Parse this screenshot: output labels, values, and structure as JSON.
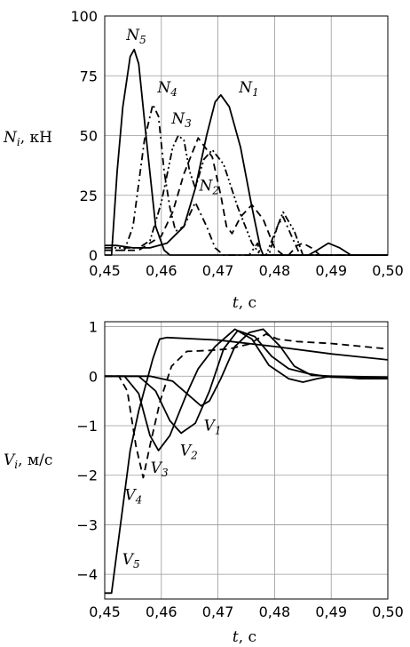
{
  "chart_data": [
    {
      "type": "line",
      "ylabel": {
        "sym": "N",
        "sub": "i",
        "unit": ", кН"
      },
      "xlabel": {
        "sym": "t",
        "unit": ", с"
      },
      "xlim": [
        0.45,
        0.5
      ],
      "ylim": [
        0,
        100
      ],
      "xticks": [
        "0,45",
        "0,46",
        "0,47",
        "0,48",
        "0,49",
        "0,50"
      ],
      "yticks": [
        "0",
        "25",
        "50",
        "75",
        "100"
      ],
      "grid": true,
      "series": [
        {
          "name": "N1",
          "dash": "solid",
          "points": [
            [
              0.45,
              4
            ],
            [
              0.452,
              4
            ],
            [
              0.455,
              3
            ],
            [
              0.458,
              3
            ],
            [
              0.461,
              5
            ],
            [
              0.464,
              12
            ],
            [
              0.466,
              28
            ],
            [
              0.468,
              50
            ],
            [
              0.4695,
              64
            ],
            [
              0.4705,
              67
            ],
            [
              0.472,
              62
            ],
            [
              0.474,
              45
            ],
            [
              0.476,
              20
            ],
            [
              0.4775,
              3
            ],
            [
              0.478,
              0
            ],
            [
              0.486,
              0
            ],
            [
              0.4875,
              2
            ],
            [
              0.4895,
              5
            ],
            [
              0.4915,
              3
            ],
            [
              0.4935,
              0
            ],
            [
              0.5,
              0
            ]
          ]
        },
        {
          "name": "N2",
          "dash": "dash",
          "points": [
            [
              0.45,
              2
            ],
            [
              0.456,
              2
            ],
            [
              0.46,
              8
            ],
            [
              0.462,
              18
            ],
            [
              0.464,
              34
            ],
            [
              0.4665,
              49
            ],
            [
              0.469,
              41
            ],
            [
              0.4705,
              25
            ],
            [
              0.4715,
              12
            ],
            [
              0.4725,
              9
            ],
            [
              0.474,
              16
            ],
            [
              0.476,
              21
            ],
            [
              0.478,
              15
            ],
            [
              0.48,
              3
            ],
            [
              0.4815,
              0
            ],
            [
              0.4825,
              0
            ],
            [
              0.484,
              4
            ],
            [
              0.485,
              5
            ],
            [
              0.4865,
              3
            ],
            [
              0.488,
              0
            ],
            [
              0.5,
              0
            ]
          ]
        },
        {
          "name": "N3",
          "dash": "dashdotdot",
          "points": [
            [
              0.45,
              3
            ],
            [
              0.456,
              3
            ],
            [
              0.458,
              6
            ],
            [
              0.46,
              22
            ],
            [
              0.462,
              45
            ],
            [
              0.463,
              50
            ],
            [
              0.464,
              48
            ],
            [
              0.465,
              35
            ],
            [
              0.466,
              28
            ],
            [
              0.4675,
              40
            ],
            [
              0.469,
              44
            ],
            [
              0.471,
              38
            ],
            [
              0.4735,
              20
            ],
            [
              0.476,
              5
            ],
            [
              0.4775,
              0
            ],
            [
              0.4785,
              0
            ],
            [
              0.4805,
              12
            ],
            [
              0.4815,
              18
            ],
            [
              0.4835,
              10
            ],
            [
              0.485,
              0
            ],
            [
              0.5,
              0
            ]
          ]
        },
        {
          "name": "N4",
          "dash": "dashdot",
          "points": [
            [
              0.45,
              2
            ],
            [
              0.4535,
              2
            ],
            [
              0.455,
              12
            ],
            [
              0.457,
              48
            ],
            [
              0.4585,
              63
            ],
            [
              0.4595,
              58
            ],
            [
              0.4605,
              35
            ],
            [
              0.4615,
              20
            ],
            [
              0.4625,
              10
            ],
            [
              0.464,
              12
            ],
            [
              0.466,
              22
            ],
            [
              0.468,
              12
            ],
            [
              0.4695,
              3
            ],
            [
              0.471,
              0
            ],
            [
              0.4755,
              0
            ],
            [
              0.477,
              5
            ],
            [
              0.4775,
              0
            ],
            [
              0.479,
              0
            ],
            [
              0.4805,
              12
            ],
            [
              0.4815,
              16
            ],
            [
              0.483,
              8
            ],
            [
              0.4845,
              0
            ],
            [
              0.5,
              0
            ]
          ]
        },
        {
          "name": "N5",
          "dash": "solid",
          "points": [
            [
              0.45,
              0
            ],
            [
              0.4512,
              0
            ],
            [
              0.4522,
              35
            ],
            [
              0.4532,
              62
            ],
            [
              0.4545,
              83
            ],
            [
              0.4552,
              86
            ],
            [
              0.456,
              80
            ],
            [
              0.4575,
              45
            ],
            [
              0.459,
              12
            ],
            [
              0.4605,
              2
            ],
            [
              0.4615,
              0
            ],
            [
              0.5,
              0
            ]
          ]
        }
      ],
      "labels": [
        {
          "series": "N5",
          "text": "N",
          "sub": "5",
          "at": [
            0.4538,
            90
          ]
        },
        {
          "series": "N4",
          "text": "N",
          "sub": "4",
          "at": [
            0.4593,
            68
          ]
        },
        {
          "series": "N3",
          "text": "N",
          "sub": "3",
          "at": [
            0.4618,
            55
          ]
        },
        {
          "series": "N1",
          "text": "N",
          "sub": "1",
          "at": [
            0.4737,
            68
          ]
        },
        {
          "series": "N2",
          "text": "N",
          "sub": "2",
          "at": [
            0.4667,
            27
          ]
        }
      ]
    },
    {
      "type": "line",
      "ylabel": {
        "sym": "V",
        "sub": "i",
        "unit": ", м/с"
      },
      "xlabel": {
        "sym": "t",
        "unit": ", с"
      },
      "xlim": [
        0.45,
        0.5
      ],
      "ylim": [
        -4.5,
        1.1
      ],
      "xticks": [
        "0,45",
        "0,46",
        "0,47",
        "0,48",
        "0,49",
        "0,50"
      ],
      "yticks": [
        "-4",
        "-3",
        "-2",
        "-1",
        "0",
        "1"
      ],
      "grid": true,
      "series": [
        {
          "name": "V1",
          "dash": "solid",
          "points": [
            [
              0.45,
              0
            ],
            [
              0.458,
              0
            ],
            [
              0.462,
              -0.1
            ],
            [
              0.4645,
              -0.35
            ],
            [
              0.467,
              -0.6
            ],
            [
              0.4685,
              -0.5
            ],
            [
              0.4705,
              -0.05
            ],
            [
              0.473,
              0.6
            ],
            [
              0.4755,
              0.88
            ],
            [
              0.478,
              0.95
            ],
            [
              0.481,
              0.6
            ],
            [
              0.4835,
              0.2
            ],
            [
              0.4865,
              0.02
            ],
            [
              0.49,
              0
            ],
            [
              0.495,
              -0.05
            ],
            [
              0.5,
              -0.05
            ]
          ]
        },
        {
          "name": "V2",
          "dash": "solid",
          "points": [
            [
              0.45,
              0
            ],
            [
              0.456,
              0
            ],
            [
              0.459,
              -0.3
            ],
            [
              0.4615,
              -0.9
            ],
            [
              0.4635,
              -1.15
            ],
            [
              0.466,
              -0.95
            ],
            [
              0.4685,
              -0.3
            ],
            [
              0.471,
              0.55
            ],
            [
              0.4735,
              0.92
            ],
            [
              0.4765,
              0.8
            ],
            [
              0.4795,
              0.4
            ],
            [
              0.4825,
              0.15
            ],
            [
              0.486,
              0.05
            ],
            [
              0.49,
              -0.02
            ],
            [
              0.5,
              -0.05
            ]
          ]
        },
        {
          "name": "V3",
          "dash": "solid",
          "points": [
            [
              0.45,
              0
            ],
            [
              0.4535,
              0
            ],
            [
              0.456,
              -0.35
            ],
            [
              0.458,
              -1.2
            ],
            [
              0.4595,
              -1.5
            ],
            [
              0.4615,
              -1.2
            ],
            [
              0.4645,
              -0.35
            ],
            [
              0.4665,
              0.15
            ],
            [
              0.4695,
              0.6
            ],
            [
              0.473,
              0.95
            ],
            [
              0.476,
              0.75
            ],
            [
              0.479,
              0.22
            ],
            [
              0.4825,
              -0.05
            ],
            [
              0.485,
              -0.12
            ],
            [
              0.4875,
              -0.05
            ],
            [
              0.49,
              0
            ],
            [
              0.5,
              -0.02
            ]
          ]
        },
        {
          "name": "V4",
          "dash": "dash",
          "points": [
            [
              0.45,
              0
            ],
            [
              0.4525,
              0
            ],
            [
              0.454,
              -0.3
            ],
            [
              0.4555,
              -1.4
            ],
            [
              0.4568,
              -2.05
            ],
            [
              0.458,
              -1.4
            ],
            [
              0.4598,
              -0.5
            ],
            [
              0.4618,
              0.2
            ],
            [
              0.4645,
              0.5
            ],
            [
              0.4685,
              0.52
            ],
            [
              0.472,
              0.55
            ],
            [
              0.4755,
              0.65
            ],
            [
              0.4785,
              0.85
            ],
            [
              0.4805,
              0.75
            ],
            [
              0.484,
              0.7
            ],
            [
              0.49,
              0.66
            ],
            [
              0.5,
              0.55
            ]
          ]
        },
        {
          "name": "V5",
          "dash": "solid",
          "points": [
            [
              0.45,
              -4.38
            ],
            [
              0.4512,
              -4.38
            ],
            [
              0.4545,
              -1.5
            ],
            [
              0.456,
              -0.7
            ],
            [
              0.4585,
              0.35
            ],
            [
              0.4597,
              0.75
            ],
            [
              0.461,
              0.78
            ],
            [
              0.47,
              0.73
            ],
            [
              0.48,
              0.6
            ],
            [
              0.49,
              0.45
            ],
            [
              0.5,
              0.33
            ]
          ]
        }
      ],
      "labels": [
        {
          "series": "V1",
          "text": "V",
          "sub": "1",
          "at": [
            0.4675,
            -1.1
          ]
        },
        {
          "series": "V2",
          "text": "V",
          "sub": "2",
          "at": [
            0.4633,
            -1.6
          ]
        },
        {
          "series": "V3",
          "text": "V",
          "sub": "3",
          "at": [
            0.4581,
            -1.95
          ]
        },
        {
          "series": "V4",
          "text": "V",
          "sub": "4",
          "at": [
            0.4535,
            -2.5
          ]
        },
        {
          "series": "V5",
          "text": "V",
          "sub": "5",
          "at": [
            0.4531,
            -3.8
          ]
        }
      ]
    }
  ]
}
